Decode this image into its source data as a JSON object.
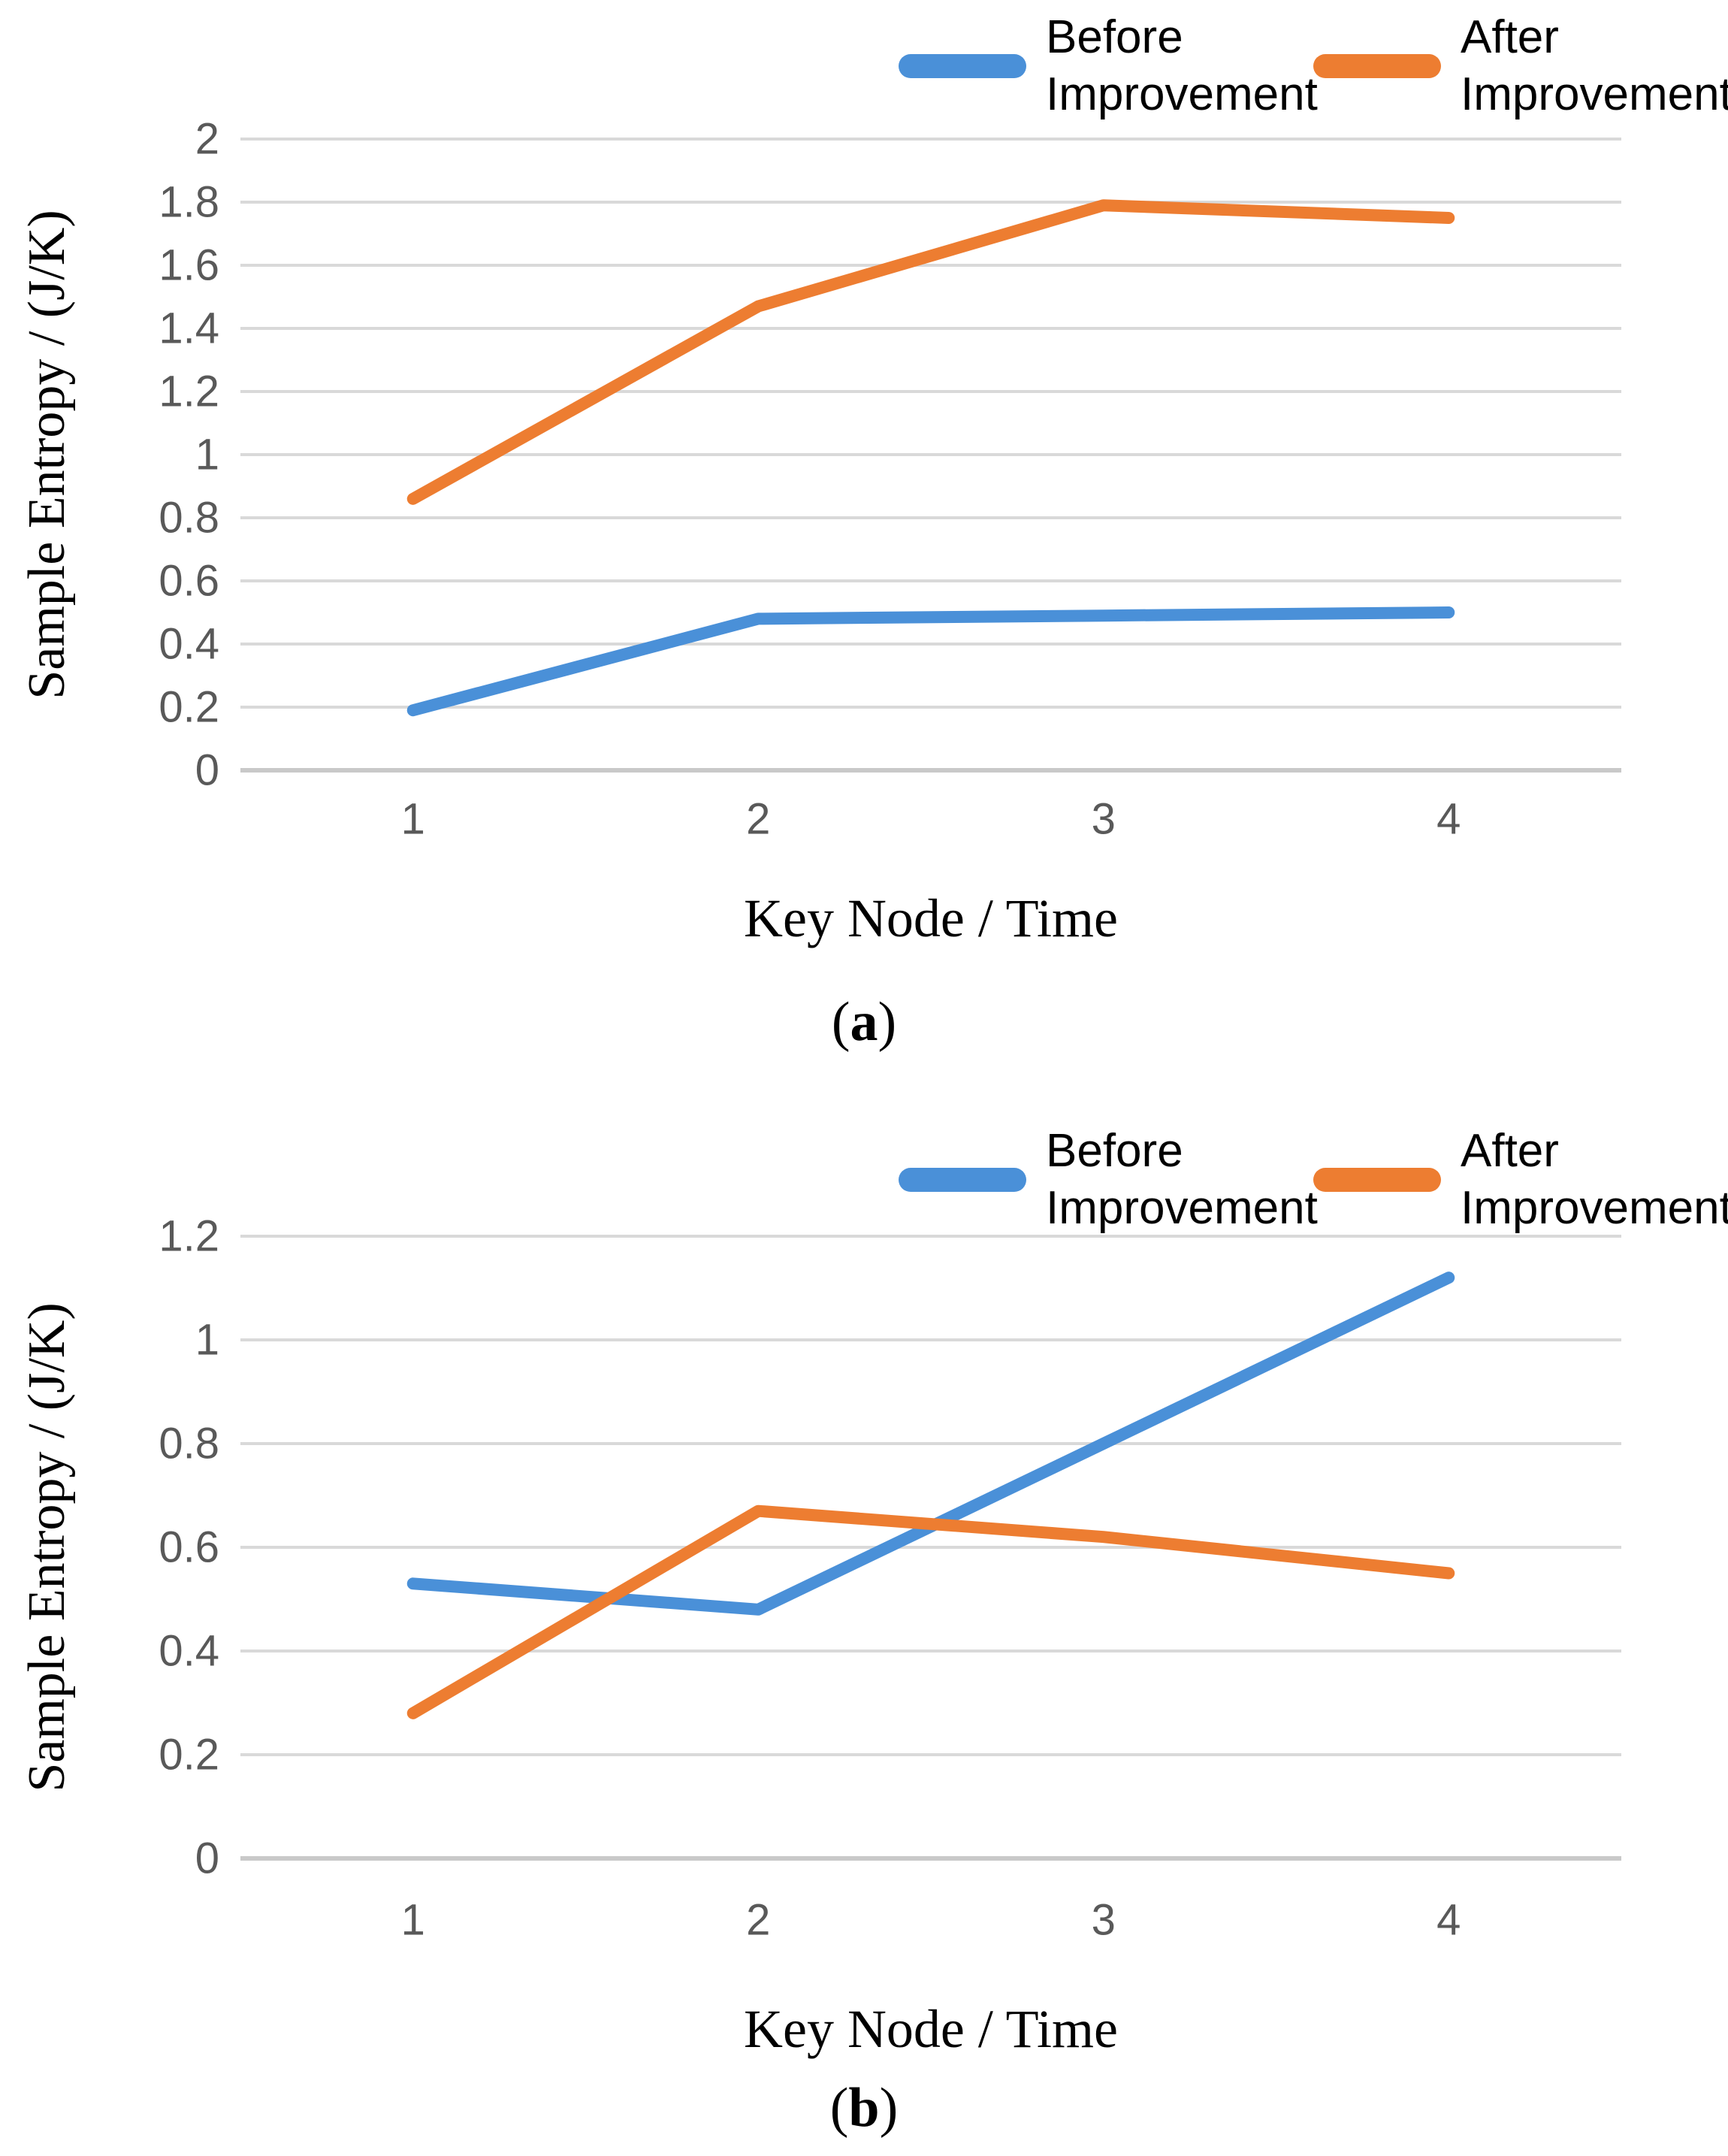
{
  "styles": {
    "gridline_color": "#D9D9D9",
    "axis_line_color": "#C9C9C9",
    "tick_label_color": "#595959",
    "legend_text_color": "#000000",
    "background": "#ffffff"
  },
  "chart_data": [
    {
      "id": "a",
      "type": "line",
      "caption": {
        "open": "(",
        "letter": "a",
        "close": ")"
      },
      "xlabel": "Key Node / Time",
      "ylabel": "Sample Entropy / (J/K)",
      "x_categories": [
        "1",
        "2",
        "3",
        "4"
      ],
      "ylim": [
        0,
        2
      ],
      "yticks": [
        "2",
        "1.8",
        "1.6",
        "1.4",
        "1.2",
        "1",
        "0.8",
        "0.6",
        "0.4",
        "0.2",
        "0"
      ],
      "grid": true,
      "legend_position": "top-right",
      "series": [
        {
          "name": "Before Improvement",
          "legend_lines": [
            "Before",
            "Improvement"
          ],
          "color": "#4A90D8",
          "values": [
            0.19,
            0.48,
            0.49,
            0.5
          ]
        },
        {
          "name": "After Improvement",
          "legend_lines": [
            "After",
            "Improvement"
          ],
          "color": "#ED7D31",
          "values": [
            0.86,
            1.47,
            1.79,
            1.75
          ]
        }
      ]
    },
    {
      "id": "b",
      "type": "line",
      "caption": {
        "open": "(",
        "letter": "b",
        "close": ")"
      },
      "xlabel": "Key Node / Time",
      "ylabel": "Sample Entropy / (J/K)",
      "x_categories": [
        "1",
        "2",
        "3",
        "4"
      ],
      "ylim": [
        0,
        1.2
      ],
      "yticks": [
        "1.2",
        "1",
        "0.8",
        "0.6",
        "0.4",
        "0.2",
        "0"
      ],
      "grid": true,
      "legend_position": "top-right",
      "series": [
        {
          "name": "Before Improvement",
          "legend_lines": [
            "Before",
            "Improvement"
          ],
          "color": "#4A90D8",
          "values": [
            0.53,
            0.48,
            0.8,
            1.12
          ]
        },
        {
          "name": "After Improvement",
          "legend_lines": [
            "After",
            "Improvement"
          ],
          "color": "#ED7D31",
          "values": [
            0.28,
            0.67,
            0.62,
            0.55
          ]
        }
      ]
    }
  ]
}
